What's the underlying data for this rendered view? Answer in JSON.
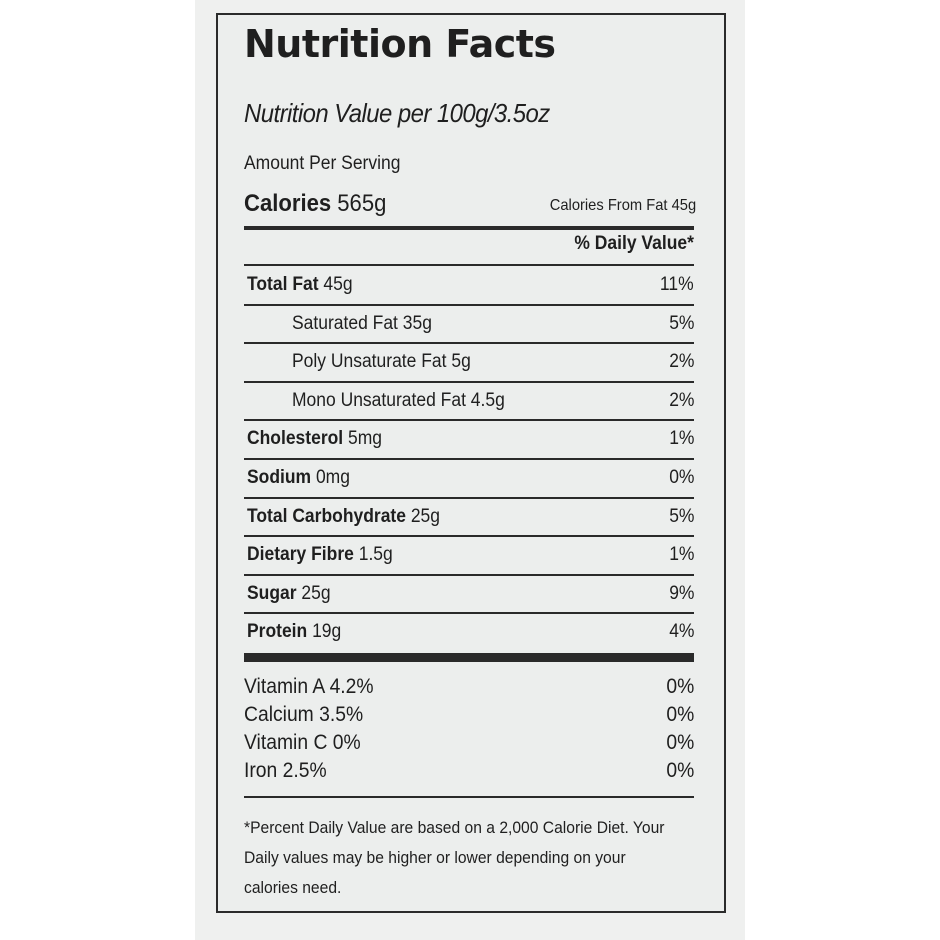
{
  "label": {
    "title": "Nutrition Facts",
    "subtitle": "Nutrition Value per 100g/3.5oz",
    "amount_per_serving": "Amount Per Serving",
    "calories_label": "Calories",
    "calories_value": "565g",
    "calories_from_fat": "Calories From Fat 45g",
    "daily_value_header": "% Daily Value*",
    "nutrients": [
      {
        "name": "Total Fat",
        "amount": "45g",
        "dv": "11%",
        "bold": true
      },
      {
        "name": "Saturated Fat",
        "amount": "35g",
        "dv": "5%",
        "bold": false
      },
      {
        "name": "Poly Unsaturate Fat",
        "amount": "5g",
        "dv": "2%",
        "bold": false
      },
      {
        "name": "Mono Unsaturated Fat",
        "amount": "4.5g",
        "dv": "2%",
        "bold": false
      },
      {
        "name": "Cholesterol",
        "amount": "5mg",
        "dv": "1%",
        "bold": true
      },
      {
        "name": "Sodium",
        "amount": "0mg",
        "dv": "0%",
        "bold": true
      },
      {
        "name": "Total Carbohydrate",
        "amount": "25g",
        "dv": "5%",
        "bold": true
      },
      {
        "name": "Dietary Fibre",
        "amount": "1.5g",
        "dv": "1%",
        "bold": true
      },
      {
        "name": "Sugar",
        "amount": "25g",
        "dv": "9%",
        "bold": true
      },
      {
        "name": "Protein",
        "amount": "19g",
        "dv": "4%",
        "bold": true
      }
    ],
    "vitamins": [
      {
        "name": "Vitamin A 4.2%",
        "dv": "0%"
      },
      {
        "name": "Calcium 3.5%",
        "dv": "0%"
      },
      {
        "name": "Vitamin C 0%",
        "dv": "0%"
      },
      {
        "name": "Iron 2.5%",
        "dv": "0%"
      }
    ],
    "footnote": [
      "*Percent Daily Value are based on a 2,000 Calorie Diet. Your",
      "Daily values may be higher or lower depending on your",
      "calories need."
    ]
  }
}
